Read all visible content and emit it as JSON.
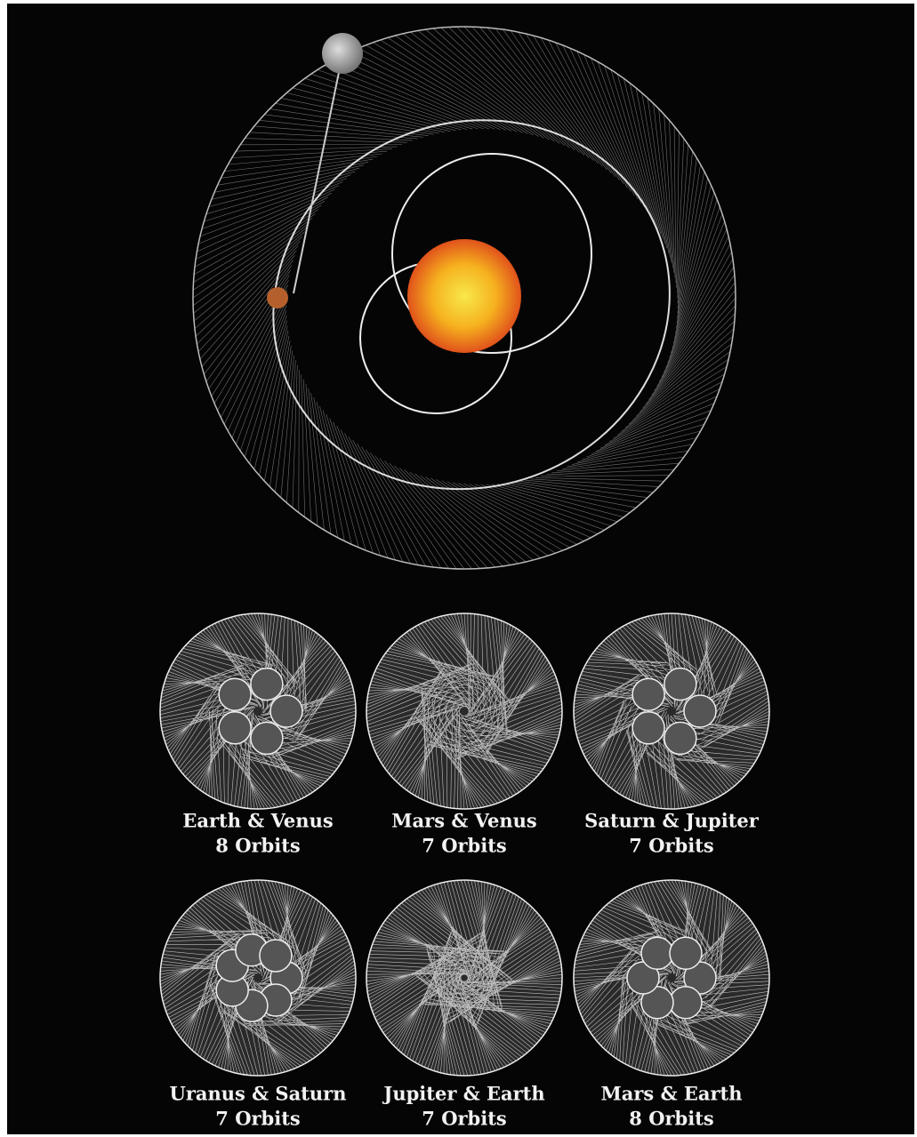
{
  "panels": [
    {
      "title": "Earth & Venus",
      "orbits": "8 Orbits"
    },
    {
      "title": "Mars & Venus",
      "orbits": "7 Orbits"
    },
    {
      "title": "Saturn & Jupiter",
      "orbits": "7 Orbits"
    },
    {
      "title": "Uranus & Saturn",
      "orbits": "7 Orbits"
    },
    {
      "title": "Jupiter & Earth",
      "orbits": "7 Orbits"
    },
    {
      "title": "Mars & Earth",
      "orbits": "8 Orbits"
    }
  ]
}
